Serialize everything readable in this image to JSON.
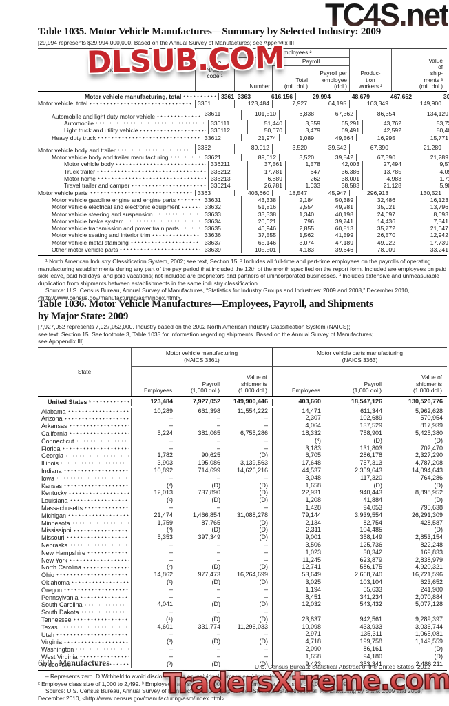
{
  "colors": {
    "rule_red": "#d07a72",
    "watermark_red": "#c6262b",
    "text": "#1a1a1a"
  },
  "watermarks": {
    "top": "TC4S.net",
    "middle": "DLSUB.COM",
    "bottom": "TradersXtreme.com"
  },
  "table1035": {
    "title": "Table 1035. Motor Vehicle Manufactures—Summary by Selected Industry: 2009",
    "note": "[29,994 represents $29,994,000,000. Based on the Annual Survey of Manufactures; see Appendix III]",
    "headers": {
      "industry": "Industry",
      "naics": "2002\nNAICS\ncode ¹",
      "all_employees": "All employees ²",
      "payroll": "Payroll",
      "number": "Number",
      "total": "Total\n(mil. dol.)",
      "per_employee": "Payroll per\nemployee\n(dol.)",
      "production": "Produc-\ntion\nworkers ²",
      "shipments": "Value\nof\nship-\nments ³\n(mil. dol.)"
    },
    "rows": [
      {
        "label": "Motor vehicle manufacturing, total",
        "naics": "3361–3363",
        "cells": [
          "616,156",
          "29,994",
          "48,679",
          "467,652",
          "301,710"
        ],
        "cls": "bold indb"
      },
      {
        "label": "Motor vehicle, total",
        "naics": "3361",
        "cells": [
          "123,484",
          "7,927",
          "64,195",
          "103,349",
          "149,900"
        ],
        "cls": "ind0"
      },
      {
        "label": "Automobile and light duty motor vehicle",
        "naics": "33611",
        "cells": [
          "101,510",
          "6,838",
          "67,362",
          "86,354",
          "134,129"
        ],
        "cls": "ind1 gap"
      },
      {
        "label": "Automobile",
        "naics": "336111",
        "cells": [
          "51,440",
          "3,359",
          "65,291",
          "43,762",
          "53,724"
        ],
        "cls": "ind2"
      },
      {
        "label": "Light truck and utility vehicle",
        "naics": "336112",
        "cells": [
          "50,070",
          "3,479",
          "69,491",
          "42,592",
          "80,405"
        ],
        "cls": "ind2"
      },
      {
        "label": "Heavy duty truck",
        "naics": "33612",
        "cells": [
          "21,974",
          "1,089",
          "49,564",
          "16,995",
          "15,771"
        ],
        "cls": "ind1"
      },
      {
        "label": "Motor vehicle body and trailer",
        "naics": "3362",
        "cells": [
          "89,012",
          "3,520",
          "39,542",
          "67,390",
          "21,289"
        ],
        "cls": "ind0 gap"
      },
      {
        "label": "Motor vehicle body and trailer manufacturing",
        "naics": "33621",
        "cells": [
          "89,012",
          "3,520",
          "39,542",
          "67,390",
          "21,289"
        ],
        "cls": "ind1"
      },
      {
        "label": "Motor vehicle body",
        "naics": "336211",
        "cells": [
          "37,561",
          "1,578",
          "42,003",
          "27,494",
          "9,571"
        ],
        "cls": "ind2"
      },
      {
        "label": "Truck trailer",
        "naics": "336212",
        "cells": [
          "17,781",
          "647",
          "36,386",
          "13,785",
          "4,095"
        ],
        "cls": "ind2"
      },
      {
        "label": "Motor home",
        "naics": "336213",
        "cells": [
          "6,889",
          "262",
          "38,001",
          "4,983",
          "1,716"
        ],
        "cls": "ind2"
      },
      {
        "label": "Travel trailer and camper",
        "naics": "336214",
        "cells": [
          "26,781",
          "1,033",
          "38,583",
          "21,128",
          "5,908"
        ],
        "cls": "ind2"
      },
      {
        "label": "Motor vehicle parts",
        "naics": "3363",
        "cells": [
          "403,660",
          "18,547",
          "45,947",
          "296,913",
          "130,521"
        ],
        "cls": "ind0"
      },
      {
        "label": "Motor vehicle gasoline engine and engine parts",
        "naics": "33631",
        "cells": [
          "43,338",
          "2,184",
          "50,389",
          "32,486",
          "16,123"
        ],
        "cls": "ind1"
      },
      {
        "label": "Motor vehicle electrical and electronic equipment",
        "naics": "33632",
        "cells": [
          "51,816",
          "2,554",
          "49,281",
          "35,021",
          "13,796"
        ],
        "cls": "ind1"
      },
      {
        "label": "Motor vehicle steering and suspension",
        "naics": "33633",
        "cells": [
          "33,338",
          "1,340",
          "40,198",
          "24,697",
          "8,093"
        ],
        "cls": "ind1"
      },
      {
        "label": "Motor vehicle brake system",
        "naics": "33634",
        "cells": [
          "20,021",
          "796",
          "39,741",
          "14,436",
          "7,541"
        ],
        "cls": "ind1"
      },
      {
        "label": "Motor vehicle transmission and power train parts",
        "naics": "33635",
        "cells": [
          "46,946",
          "2,855",
          "60,813",
          "35,772",
          "21,047"
        ],
        "cls": "ind1"
      },
      {
        "label": "Motor vehicle seating and interior trim",
        "naics": "33636",
        "cells": [
          "37,555",
          "1,562",
          "41,599",
          "26,570",
          "12,942"
        ],
        "cls": "ind1"
      },
      {
        "label": "Motor vehicle metal stamping",
        "naics": "33637",
        "cells": [
          "65,146",
          "3,074",
          "47,189",
          "49,922",
          "17,739"
        ],
        "cls": "ind1"
      },
      {
        "label": "Other motor vehicle parts",
        "naics": "33639",
        "cells": [
          "105,501",
          "4,183",
          "39,646",
          "78,009",
          "33,241"
        ],
        "cls": "ind1"
      }
    ],
    "footnote": "¹ North American Industry Classification System, 2002; see text, Section 15. ² Includes all full-time and part-time employees on the payrolls of operating manufacturing establishments during any part of the pay period that included the 12th of the month specified on the report form. Included are employees on paid sick leave, paid holidays, and paid vacations; not included are proprietors and partners of unincorporated businesses. ³ Includes extensive and unmeasurable duplication from shipments between establishments in the same industry classification.",
    "source": "Source: U.S. Census Bureau, Annual Survey of Manufactures, “Statistics for Industry Groups and Industries: 2009 and 2008,” December 2010, <http://www.census.gov/manufacturing/asm/index.html>."
  },
  "table1036": {
    "title": "Table 1036. Motor Vehicle Manufactures—Employees, Payroll, and Shipments\nby Major State: 2009",
    "note": "[7,927,052 represents 7,927,052,000. Industry based on the 2002 North American Industry Classification System (NAICS);\nsee text, Section 15. See footnote 3, Table 1035 for information regarding shipments. Based on the Annual Survey of Manufactures;\nsee Apppendix III]",
    "headers": {
      "state": "State",
      "group1": "Motor vehicle manufacturing\n(NAICS 3361)",
      "group2": "Motor vehicle parts manufacturing\n(NAICS 3363)",
      "employees": "Employees",
      "payroll": "Payroll\n(1,000 dol.)",
      "shipments": "Value of\nshipments\n(1,000 dol.)"
    },
    "rows": [
      {
        "label": "United States ¹",
        "left": [
          "123,484",
          "7,927,052",
          "149,900,446"
        ],
        "right": [
          "403,660",
          "18,547,126",
          "130,520,776"
        ],
        "cls": "usrow"
      },
      {
        "label": "Alabama",
        "left": [
          "10,289",
          "661,398",
          "11,554,222"
        ],
        "right": [
          "14,471",
          "611,344",
          "5,962,628"
        ],
        "cls": ""
      },
      {
        "label": "Arizona",
        "left": [
          "–",
          "–",
          "–"
        ],
        "right": [
          "2,307",
          "102,689",
          "570,954"
        ],
        "cls": ""
      },
      {
        "label": "Arkansas",
        "left": [
          "–",
          "–",
          "–"
        ],
        "right": [
          "4,064",
          "137,529",
          "817,939"
        ],
        "cls": ""
      },
      {
        "label": "California",
        "left": [
          "5,224",
          "381,065",
          "6,755,286"
        ],
        "right": [
          "18,332",
          "758,901",
          "5,425,380"
        ],
        "cls": ""
      },
      {
        "label": "Connecticut",
        "left": [
          "–",
          "–",
          "–"
        ],
        "right": [
          "(³)",
          "(D)",
          "(D)"
        ],
        "cls": ""
      },
      {
        "label": "Florida",
        "left": [
          "–",
          "–",
          "–"
        ],
        "right": [
          "3,183",
          "131,803",
          "702,470"
        ],
        "cls": ""
      },
      {
        "label": "Georgia",
        "left": [
          "1,782",
          "90,625",
          "(D)"
        ],
        "right": [
          "6,705",
          "286,178",
          "2,327,290"
        ],
        "cls": ""
      },
      {
        "label": "Illinois",
        "left": [
          "3,903",
          "195,086",
          "3,139,563"
        ],
        "right": [
          "17,648",
          "757,313",
          "4,787,208"
        ],
        "cls": ""
      },
      {
        "label": "Indiana",
        "left": [
          "10,892",
          "714,699",
          "14,626,216"
        ],
        "right": [
          "44,537",
          "2,359,643",
          "14,094,643"
        ],
        "cls": ""
      },
      {
        "label": "Iowa",
        "left": [
          "–",
          "–",
          "–"
        ],
        "right": [
          "3,048",
          "117,320",
          "764,286"
        ],
        "cls": ""
      },
      {
        "label": "Kansas",
        "left": [
          "(³)",
          "(D)",
          "(D)"
        ],
        "right": [
          "1,658",
          "(D)",
          "(D)"
        ],
        "cls": ""
      },
      {
        "label": "Kentucky",
        "left": [
          "12,013",
          "737,890",
          "(D)"
        ],
        "right": [
          "22,931",
          "940,443",
          "8,898,952"
        ],
        "cls": ""
      },
      {
        "label": "Louisiana",
        "left": [
          "(²)",
          "(D)",
          "(D)"
        ],
        "right": [
          "1,208",
          "41,884",
          "(D)"
        ],
        "cls": ""
      },
      {
        "label": "Massachusetts",
        "left": [
          "–",
          "–",
          "–"
        ],
        "right": [
          "1,428",
          "94,053",
          "795,638"
        ],
        "cls": ""
      },
      {
        "label": "Michigan",
        "left": [
          "21,474",
          "1,466,854",
          "31,088,278"
        ],
        "right": [
          "79,144",
          "3,939,554",
          "26,291,309"
        ],
        "cls": ""
      },
      {
        "label": "Minnesota",
        "left": [
          "1,759",
          "87,765",
          "(D)"
        ],
        "right": [
          "2,134",
          "82,754",
          "428,587"
        ],
        "cls": ""
      },
      {
        "label": "Mississippi",
        "left": [
          "(³)",
          "(D)",
          "(D)"
        ],
        "right": [
          "2,311",
          "104,485",
          "(D)"
        ],
        "cls": ""
      },
      {
        "label": "Missouri",
        "left": [
          "5,353",
          "397,349",
          "(D)"
        ],
        "right": [
          "9,001",
          "358,149",
          "2,853,154"
        ],
        "cls": ""
      },
      {
        "label": "Nebraska",
        "left": [
          "–",
          "–",
          "–"
        ],
        "right": [
          "3,506",
          "125,736",
          "822,248"
        ],
        "cls": ""
      },
      {
        "label": "New Hampshire",
        "left": [
          "–",
          "–",
          "–"
        ],
        "right": [
          "1,023",
          "30,342",
          "169,833"
        ],
        "cls": ""
      },
      {
        "label": "New York",
        "left": [
          "–",
          "–",
          "–"
        ],
        "right": [
          "11,245",
          "623,879",
          "2,838,979"
        ],
        "cls": ""
      },
      {
        "label": "North Carolina",
        "left": [
          "(²)",
          "(D)",
          "(D)"
        ],
        "right": [
          "12,741",
          "586,175",
          "4,920,321"
        ],
        "cls": ""
      },
      {
        "label": "Ohio",
        "left": [
          "14,862",
          "977,473",
          "16,264,699"
        ],
        "right": [
          "53,649",
          "2,668,740",
          "16,721,596"
        ],
        "cls": ""
      },
      {
        "label": "Oklahoma",
        "left": [
          "(²)",
          "(D)",
          "(D)"
        ],
        "right": [
          "3,025",
          "103,104",
          "623,652"
        ],
        "cls": ""
      },
      {
        "label": "Oregon",
        "left": [
          "–",
          "–",
          "–"
        ],
        "right": [
          "1,194",
          "55,633",
          "241,980"
        ],
        "cls": ""
      },
      {
        "label": "Pennsylvania",
        "left": [
          "–",
          "–",
          "–"
        ],
        "right": [
          "8,451",
          "341,234",
          "2,070,884"
        ],
        "cls": ""
      },
      {
        "label": "South Carolina",
        "left": [
          "4,041",
          "(D)",
          "(D)"
        ],
        "right": [
          "12,032",
          "543,432",
          "5,077,128"
        ],
        "cls": ""
      },
      {
        "label": "South Dakota",
        "left": [
          "–",
          "–",
          "–"
        ],
        "right": [
          "",
          "",
          ""
        ],
        "cls": ""
      },
      {
        "label": "Tennessee",
        "left": [
          "(⁴)",
          "(D)",
          "(D)"
        ],
        "right": [
          "23,837",
          "942,561",
          "9,289,397"
        ],
        "cls": ""
      },
      {
        "label": "Texas",
        "left": [
          "4,601",
          "331,774",
          "11,296,033"
        ],
        "right": [
          "10,098",
          "433,933",
          "3,036,744"
        ],
        "cls": ""
      },
      {
        "label": "Utah",
        "left": [
          "–",
          "–",
          "–"
        ],
        "right": [
          "2,971",
          "135,311",
          "1,065,081"
        ],
        "cls": ""
      },
      {
        "label": "Virginia",
        "left": [
          "(²)",
          "(D)",
          "(D)"
        ],
        "right": [
          "4,718",
          "199,758",
          "1,149,559"
        ],
        "cls": ""
      },
      {
        "label": "Washington",
        "left": [
          "–",
          "–",
          "–"
        ],
        "right": [
          "2,090",
          "86,161",
          "(D)"
        ],
        "cls": ""
      },
      {
        "label": "West Virginia",
        "left": [
          "–",
          "–",
          "–"
        ],
        "right": [
          "1,658",
          "94,180",
          "(D)"
        ],
        "cls": ""
      },
      {
        "label": "Wisconsin",
        "left": [
          "(³)",
          "(D)",
          "(D)"
        ],
        "right": [
          "9,423",
          "353,341",
          "2,486,211"
        ],
        "cls": ""
      }
    ],
    "footnote1": "– Represents zero. D Withheld to avoid disclosing data on individual companies. ¹ Includes states not shown separately.",
    "footnote2": "² Employee class size of 1,000 to 2,499. ³ Employee class size of 2,500 to 4,999. ⁴ Employee class size of 5,000 to 9,999.",
    "source": "Source: U.S. Census Bureau, Annual Survey of Manufactures, “Geographic Area Statistics: Statistics for all Manufacturing by State: 2009 and 2008,” December 2010, <http://www.census.gov/manufacturing/asm/index.html>."
  },
  "footer": {
    "page": "650",
    "chapter": "Manufactures",
    "credit": "U.S. Census Bureau, Statistical Abstract of the United States: 2012"
  }
}
